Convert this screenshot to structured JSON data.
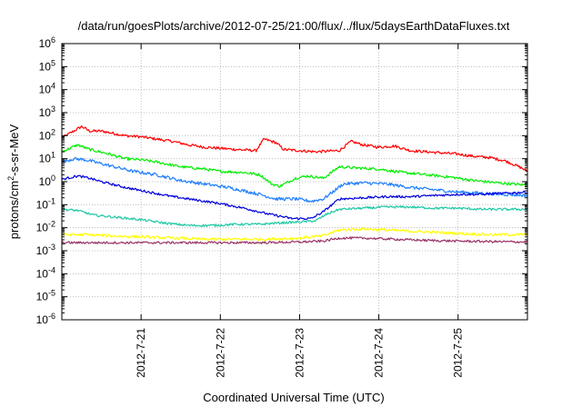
{
  "chart_data": {
    "type": "line",
    "title": "/data/run/goesPlots/archive/2012-07-25/21:00/flux/../flux/5daysEarthDataFluxes.txt",
    "xlabel": "Coordinated Universal Time (UTC)",
    "ylabel": "protons/cm2-s-sr-MeV",
    "ylabel_parts": {
      "pre": "protons/cm",
      "sup": "2",
      "post": "-s-sr-MeV"
    },
    "yscale": "log",
    "ylim_exp": [
      -6,
      6
    ],
    "y_tick_exponents": [
      6,
      5,
      4,
      3,
      2,
      1,
      0,
      -1,
      -2,
      -3,
      -4,
      -5,
      -6
    ],
    "xlim_days": [
      0.0,
      5.875
    ],
    "x_ticks": [
      {
        "label": "2012-7-21",
        "day": 1
      },
      {
        "label": "2012-7-22",
        "day": 2
      },
      {
        "label": "2012-7-23",
        "day": 3
      },
      {
        "label": "2012-7-24",
        "day": 4
      },
      {
        "label": "2012-7-25",
        "day": 5
      }
    ],
    "grid": true,
    "series": [
      {
        "color": "#ff0000",
        "noise": 0.06,
        "points": [
          [
            0.0,
            1.9
          ],
          [
            0.15,
            2.2
          ],
          [
            0.25,
            2.4
          ],
          [
            0.35,
            2.2
          ],
          [
            0.5,
            2.2
          ],
          [
            0.8,
            2.0
          ],
          [
            1.0,
            1.95
          ],
          [
            1.2,
            1.85
          ],
          [
            1.4,
            1.75
          ],
          [
            1.6,
            1.6
          ],
          [
            1.8,
            1.5
          ],
          [
            2.0,
            1.45
          ],
          [
            2.2,
            1.4
          ],
          [
            2.45,
            1.35
          ],
          [
            2.55,
            1.85
          ],
          [
            2.7,
            1.7
          ],
          [
            2.8,
            1.4
          ],
          [
            3.0,
            1.35
          ],
          [
            3.2,
            1.3
          ],
          [
            3.5,
            1.35
          ],
          [
            3.65,
            1.75
          ],
          [
            3.8,
            1.6
          ],
          [
            4.0,
            1.5
          ],
          [
            4.2,
            1.55
          ],
          [
            4.4,
            1.35
          ],
          [
            4.6,
            1.3
          ],
          [
            4.8,
            1.25
          ],
          [
            5.0,
            1.2
          ],
          [
            5.2,
            1.1
          ],
          [
            5.4,
            1.05
          ],
          [
            5.6,
            0.9
          ],
          [
            5.8,
            0.6
          ],
          [
            5.875,
            0.45
          ]
        ]
      },
      {
        "color": "#00ee00",
        "noise": 0.06,
        "points": [
          [
            0.0,
            1.3
          ],
          [
            0.2,
            1.6
          ],
          [
            0.35,
            1.4
          ],
          [
            0.6,
            1.2
          ],
          [
            0.8,
            1.0
          ],
          [
            1.0,
            0.95
          ],
          [
            1.2,
            0.85
          ],
          [
            1.5,
            0.65
          ],
          [
            1.8,
            0.55
          ],
          [
            2.0,
            0.45
          ],
          [
            2.3,
            0.4
          ],
          [
            2.5,
            0.3
          ],
          [
            2.65,
            -0.1
          ],
          [
            2.75,
            -0.2
          ],
          [
            2.95,
            0.15
          ],
          [
            3.1,
            0.25
          ],
          [
            3.3,
            0.15
          ],
          [
            3.5,
            0.65
          ],
          [
            3.7,
            0.6
          ],
          [
            4.0,
            0.55
          ],
          [
            4.3,
            0.4
          ],
          [
            4.6,
            0.3
          ],
          [
            4.9,
            0.2
          ],
          [
            5.2,
            0.05
          ],
          [
            5.5,
            -0.05
          ],
          [
            5.875,
            -0.15
          ]
        ]
      },
      {
        "color": "#1e7fff",
        "noise": 0.07,
        "points": [
          [
            0.0,
            0.85
          ],
          [
            0.15,
            1.0
          ],
          [
            0.3,
            0.95
          ],
          [
            0.6,
            0.7
          ],
          [
            0.9,
            0.45
          ],
          [
            1.2,
            0.3
          ],
          [
            1.5,
            0.05
          ],
          [
            1.8,
            -0.1
          ],
          [
            2.1,
            -0.25
          ],
          [
            2.3,
            -0.4
          ],
          [
            2.5,
            -0.55
          ],
          [
            2.7,
            -0.75
          ],
          [
            2.95,
            -0.75
          ],
          [
            3.15,
            -0.85
          ],
          [
            3.3,
            -0.75
          ],
          [
            3.55,
            -0.1
          ],
          [
            3.8,
            -0.05
          ],
          [
            4.1,
            -0.1
          ],
          [
            4.4,
            -0.25
          ],
          [
            4.7,
            -0.35
          ],
          [
            5.0,
            -0.45
          ],
          [
            5.3,
            -0.5
          ],
          [
            5.6,
            -0.55
          ],
          [
            5.875,
            -0.6
          ]
        ]
      },
      {
        "color": "#0000dd",
        "noise": 0.05,
        "points": [
          [
            0.0,
            0.1
          ],
          [
            0.2,
            0.25
          ],
          [
            0.35,
            0.15
          ],
          [
            0.5,
            0.0
          ],
          [
            0.8,
            -0.25
          ],
          [
            1.1,
            -0.45
          ],
          [
            1.4,
            -0.65
          ],
          [
            1.7,
            -0.8
          ],
          [
            2.0,
            -0.95
          ],
          [
            2.3,
            -1.15
          ],
          [
            2.6,
            -1.4
          ],
          [
            2.9,
            -1.6
          ],
          [
            3.15,
            -1.6
          ],
          [
            3.3,
            -1.3
          ],
          [
            3.5,
            -0.75
          ],
          [
            3.8,
            -0.7
          ],
          [
            4.1,
            -0.65
          ],
          [
            4.4,
            -0.65
          ],
          [
            4.7,
            -0.6
          ],
          [
            5.0,
            -0.55
          ],
          [
            5.3,
            -0.55
          ],
          [
            5.6,
            -0.5
          ],
          [
            5.875,
            -0.45
          ]
        ]
      },
      {
        "color": "#1ec8a5",
        "noise": 0.05,
        "points": [
          [
            0.0,
            -1.2
          ],
          [
            0.2,
            -1.25
          ],
          [
            0.4,
            -1.45
          ],
          [
            0.7,
            -1.55
          ],
          [
            1.0,
            -1.65
          ],
          [
            1.3,
            -1.8
          ],
          [
            1.6,
            -1.9
          ],
          [
            1.9,
            -1.9
          ],
          [
            2.2,
            -1.85
          ],
          [
            2.5,
            -1.85
          ],
          [
            2.7,
            -1.8
          ],
          [
            3.0,
            -1.75
          ],
          [
            3.2,
            -1.7
          ],
          [
            3.35,
            -1.4
          ],
          [
            3.5,
            -1.2
          ],
          [
            3.8,
            -1.15
          ],
          [
            4.1,
            -1.1
          ],
          [
            4.4,
            -1.1
          ],
          [
            4.7,
            -1.15
          ],
          [
            5.0,
            -1.15
          ],
          [
            5.3,
            -1.2
          ],
          [
            5.6,
            -1.2
          ],
          [
            5.875,
            -1.2
          ]
        ]
      },
      {
        "color": "#ffff00",
        "noise": 0.06,
        "points": [
          [
            0.0,
            -2.3
          ],
          [
            0.3,
            -2.3
          ],
          [
            0.6,
            -2.35
          ],
          [
            1.0,
            -2.4
          ],
          [
            1.4,
            -2.45
          ],
          [
            1.8,
            -2.5
          ],
          [
            2.2,
            -2.5
          ],
          [
            2.6,
            -2.5
          ],
          [
            3.0,
            -2.45
          ],
          [
            3.3,
            -2.35
          ],
          [
            3.5,
            -2.1
          ],
          [
            3.8,
            -2.05
          ],
          [
            4.1,
            -2.1
          ],
          [
            4.4,
            -2.15
          ],
          [
            4.7,
            -2.2
          ],
          [
            5.0,
            -2.25
          ],
          [
            5.4,
            -2.3
          ],
          [
            5.875,
            -2.3
          ]
        ]
      },
      {
        "color": "#993366",
        "noise": 0.05,
        "points": [
          [
            0.0,
            -2.65
          ],
          [
            0.5,
            -2.65
          ],
          [
            1.0,
            -2.65
          ],
          [
            1.5,
            -2.65
          ],
          [
            2.0,
            -2.65
          ],
          [
            2.5,
            -2.65
          ],
          [
            3.0,
            -2.62
          ],
          [
            3.3,
            -2.58
          ],
          [
            3.5,
            -2.45
          ],
          [
            3.8,
            -2.45
          ],
          [
            4.2,
            -2.5
          ],
          [
            4.6,
            -2.55
          ],
          [
            5.0,
            -2.58
          ],
          [
            5.4,
            -2.6
          ],
          [
            5.875,
            -2.62
          ]
        ]
      }
    ]
  }
}
